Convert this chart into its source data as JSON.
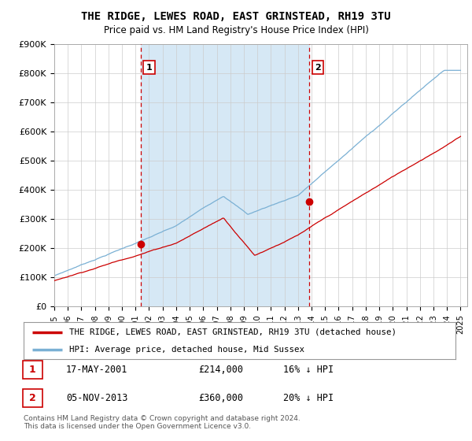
{
  "title": "THE RIDGE, LEWES ROAD, EAST GRINSTEAD, RH19 3TU",
  "subtitle": "Price paid vs. HM Land Registry's House Price Index (HPI)",
  "ylim": [
    0,
    900000
  ],
  "yticks": [
    0,
    100000,
    200000,
    300000,
    400000,
    500000,
    600000,
    700000,
    800000,
    900000
  ],
  "ytick_labels": [
    "£0",
    "£100K",
    "£200K",
    "£300K",
    "£400K",
    "£500K",
    "£600K",
    "£700K",
    "£800K",
    "£900K"
  ],
  "red_line_color": "#cc0000",
  "blue_line_color": "#7ab0d4",
  "blue_fill_color": "#d6e8f5",
  "vline_color": "#cc0000",
  "marker1_year": 2001.38,
  "marker1_y": 214000,
  "marker2_year": 2013.84,
  "marker2_y": 360000,
  "annotation1": "1",
  "annotation2": "2",
  "legend_entry1": "THE RIDGE, LEWES ROAD, EAST GRINSTEAD, RH19 3TU (detached house)",
  "legend_entry2": "HPI: Average price, detached house, Mid Sussex",
  "table_row1": [
    "1",
    "17-MAY-2001",
    "£214,000",
    "16% ↓ HPI"
  ],
  "table_row2": [
    "2",
    "05-NOV-2013",
    "£360,000",
    "20% ↓ HPI"
  ],
  "footer": "Contains HM Land Registry data © Crown copyright and database right 2024.\nThis data is licensed under the Open Government Licence v3.0.",
  "background_color": "#ffffff",
  "grid_color": "#cccccc",
  "xmin": 1995,
  "xmax": 2025.5
}
